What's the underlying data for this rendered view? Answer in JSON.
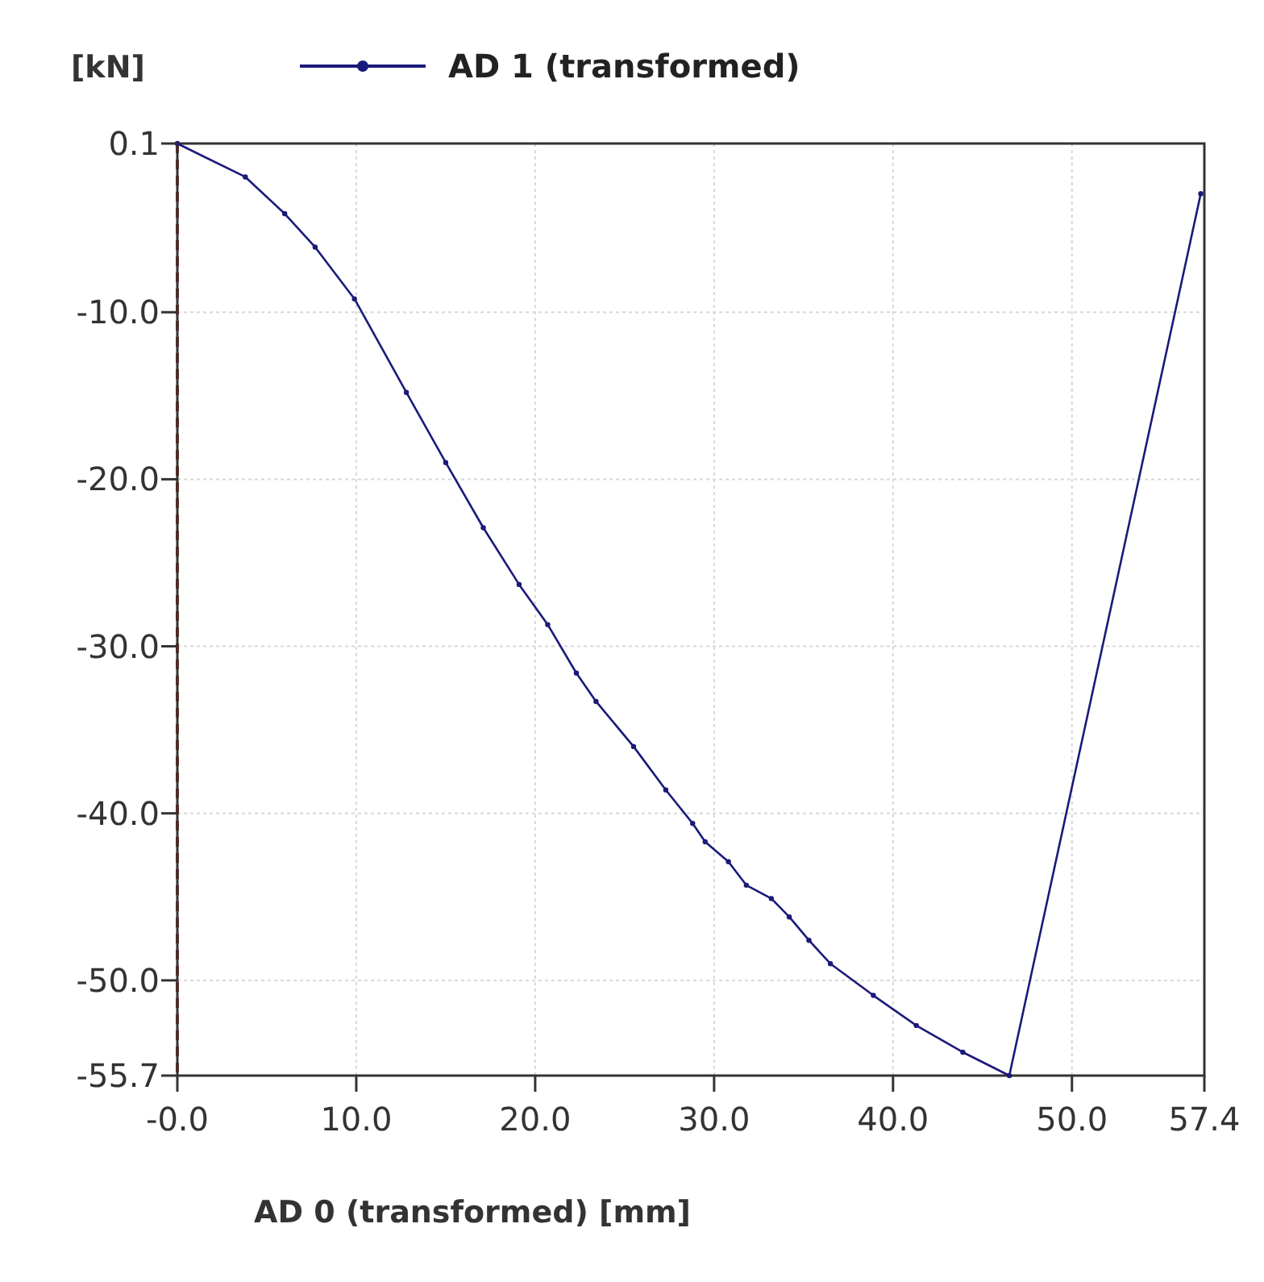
{
  "chart_data": {
    "type": "line",
    "xlabel": "AD 0 (transformed) [mm]",
    "ylabel": "[kN]",
    "legend": "top",
    "grid": true,
    "marker": "circle",
    "line_style": "solid",
    "xlim": [
      0,
      57.4
    ],
    "ylim": [
      -55.7,
      0.1
    ],
    "xticks": [
      {
        "value": 0,
        "label": "-0.0"
      },
      {
        "value": 10,
        "label": "10.0"
      },
      {
        "value": 20,
        "label": "20.0"
      },
      {
        "value": 30,
        "label": "30.0"
      },
      {
        "value": 40,
        "label": "40.0"
      },
      {
        "value": 50,
        "label": "50.0"
      },
      57.4
    ],
    "yticks": [
      0.1,
      {
        "value": -10,
        "label": "-10.0"
      },
      {
        "value": -20,
        "label": "-20.0"
      },
      {
        "value": -30,
        "label": "-30.0"
      },
      {
        "value": -40,
        "label": "-40.0"
      },
      {
        "value": -50,
        "label": "-50.0"
      },
      -55.7
    ],
    "ref_lines": [
      {
        "axis": "x",
        "value": 0,
        "color": "#8b2a1a",
        "line_style": "dashed"
      }
    ],
    "series": [
      {
        "name": "AD 1 (transformed)",
        "color": "#1a1a7a",
        "x": [
          0,
          3.8,
          6.0,
          7.7,
          9.9,
          12.8,
          15.0,
          17.1,
          19.1,
          20.7,
          22.3,
          23.4,
          25.5,
          27.3,
          28.8,
          29.5,
          30.8,
          31.8,
          33.2,
          34.2,
          35.3,
          36.5,
          38.9,
          41.3,
          43.9,
          46.5,
          57.2
        ],
        "values": [
          0.1,
          -1.9,
          -4.1,
          -6.1,
          -9.2,
          -14.8,
          -19.0,
          -22.9,
          -26.3,
          -28.7,
          -31.6,
          -33.3,
          -36.0,
          -38.6,
          -40.6,
          -41.7,
          -42.9,
          -44.3,
          -45.1,
          -46.2,
          -47.6,
          -49.0,
          -50.9,
          -52.7,
          -54.3,
          -55.7,
          -2.9
        ]
      }
    ]
  }
}
